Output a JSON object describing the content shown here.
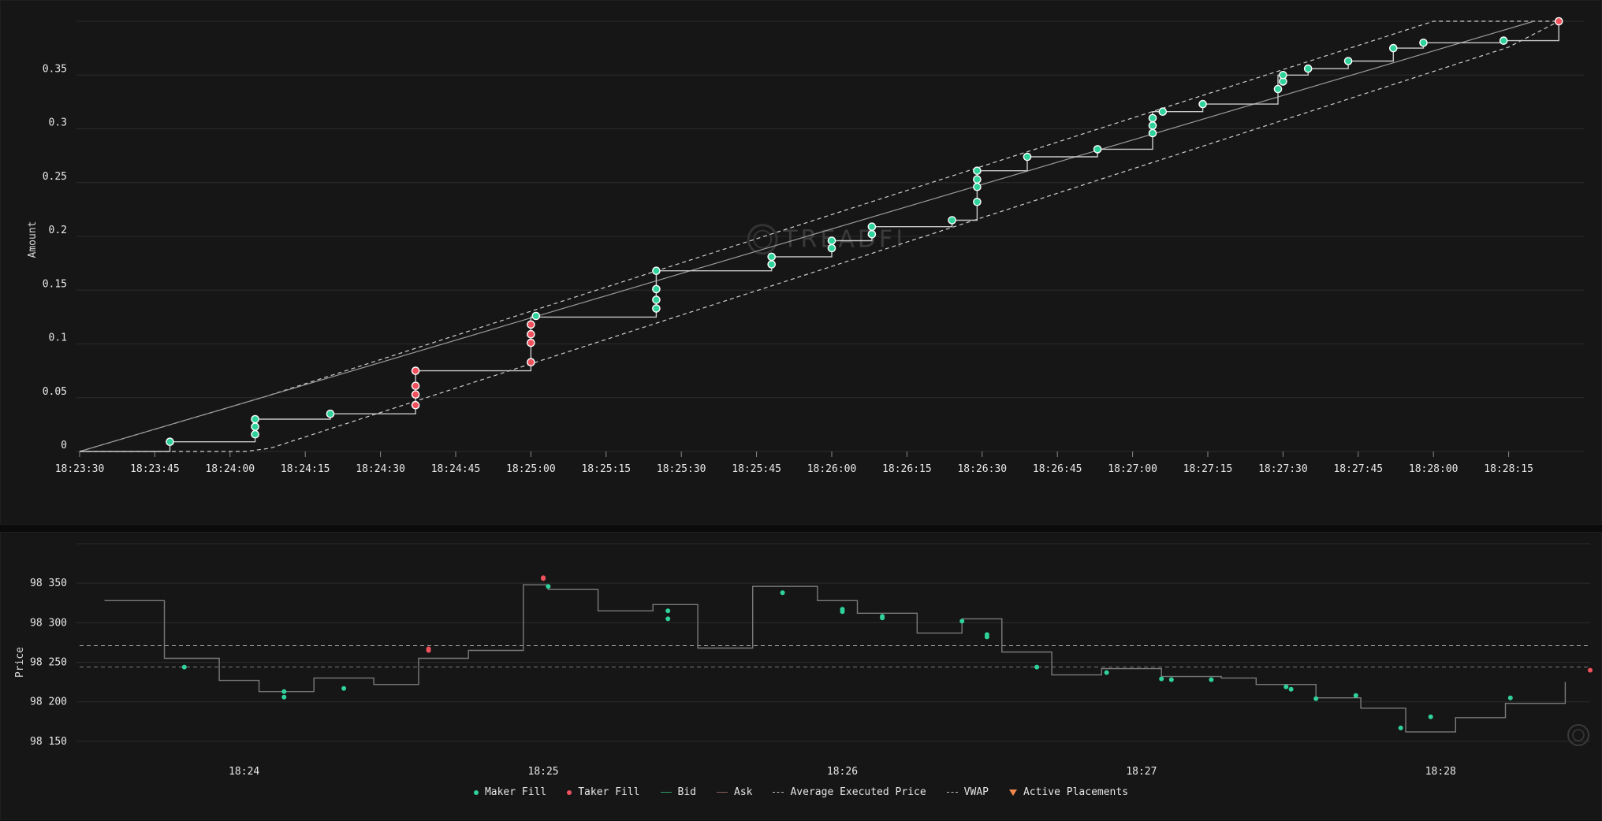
{
  "colors": {
    "maker": "#2fd39a",
    "taker": "#f0525d",
    "bid": "#2e9a6b",
    "ask": "#8a5a5a",
    "line": "#c9c9c9",
    "band": "#cfcfcf",
    "step": "#7a7a7a",
    "active": "#f0884d"
  },
  "watermark": "TREADFI",
  "chart_data": [
    {
      "type": "line",
      "ylabel": "Amount",
      "ylim": [
        0,
        0.4
      ],
      "xlim": [
        "18:23:30",
        "18:28:30"
      ],
      "yticks": [
        {
          "v": 0,
          "label": "0"
        },
        {
          "v": 0.05,
          "label": "0.05"
        },
        {
          "v": 0.1,
          "label": "0.1"
        },
        {
          "v": 0.15,
          "label": "0.15"
        },
        {
          "v": 0.2,
          "label": "0.2"
        },
        {
          "v": 0.25,
          "label": "0.25"
        },
        {
          "v": 0.3,
          "label": "0.3"
        },
        {
          "v": 0.35,
          "label": "0.35"
        }
      ],
      "xticks": [
        "18:23:30",
        "18:23:45",
        "18:24:00",
        "18:24:15",
        "18:24:30",
        "18:24:45",
        "18:25:00",
        "18:25:15",
        "18:25:30",
        "18:25:45",
        "18:26:00",
        "18:26:15",
        "18:26:30",
        "18:26:45",
        "18:27:00",
        "18:27:15",
        "18:27:30",
        "18:27:45",
        "18:28:00",
        "18:28:15"
      ],
      "target_line": [
        [
          "18:23:30",
          0
        ],
        [
          "18:28:20",
          0.4
        ]
      ],
      "upper_band": [
        [
          "18:23:30",
          0
        ],
        [
          "18:24:07",
          0.051
        ],
        [
          "18:28:00",
          0.4
        ],
        [
          "18:28:25",
          0.4
        ]
      ],
      "lower_band": [
        [
          "18:23:30",
          0
        ],
        [
          "18:24:03",
          0
        ],
        [
          "18:24:08",
          0.003
        ],
        [
          "18:28:15",
          0.376
        ],
        [
          "18:28:25",
          0.4
        ]
      ],
      "executed_steps": [
        [
          "18:23:30",
          0
        ],
        [
          "18:23:48",
          0
        ],
        [
          "18:23:48",
          0.009
        ],
        [
          "18:24:05",
          0.009
        ],
        [
          "18:24:05",
          0.03
        ],
        [
          "18:24:20",
          0.03
        ],
        [
          "18:24:20",
          0.035
        ],
        [
          "18:24:37",
          0.035
        ],
        [
          "18:24:37",
          0.075
        ],
        [
          "18:25:00",
          0.075
        ],
        [
          "18:25:00",
          0.125
        ],
        [
          "18:25:25",
          0.125
        ],
        [
          "18:25:25",
          0.168
        ],
        [
          "18:25:48",
          0.168
        ],
        [
          "18:25:48",
          0.181
        ],
        [
          "18:26:00",
          0.181
        ],
        [
          "18:26:00",
          0.196
        ],
        [
          "18:26:08",
          0.196
        ],
        [
          "18:26:08",
          0.209
        ],
        [
          "18:26:24",
          0.209
        ],
        [
          "18:26:24",
          0.215
        ],
        [
          "18:26:29",
          0.215
        ],
        [
          "18:26:29",
          0.261
        ],
        [
          "18:26:39",
          0.261
        ],
        [
          "18:26:39",
          0.274
        ],
        [
          "18:26:53",
          0.274
        ],
        [
          "18:26:53",
          0.281
        ],
        [
          "18:27:04",
          0.281
        ],
        [
          "18:27:04",
          0.316
        ],
        [
          "18:27:14",
          0.316
        ],
        [
          "18:27:14",
          0.323
        ],
        [
          "18:27:29",
          0.323
        ],
        [
          "18:27:29",
          0.35
        ],
        [
          "18:27:35",
          0.35
        ],
        [
          "18:27:35",
          0.356
        ],
        [
          "18:27:43",
          0.356
        ],
        [
          "18:27:43",
          0.363
        ],
        [
          "18:27:52",
          0.363
        ],
        [
          "18:27:52",
          0.375
        ],
        [
          "18:27:58",
          0.375
        ],
        [
          "18:27:58",
          0.38
        ],
        [
          "18:28:14",
          0.38
        ],
        [
          "18:28:14",
          0.382
        ],
        [
          "18:28:25",
          0.382
        ],
        [
          "18:28:25",
          0.4
        ]
      ],
      "maker_fills": [
        [
          "18:23:48",
          0.009
        ],
        [
          "18:24:05",
          0.016
        ],
        [
          "18:24:05",
          0.023
        ],
        [
          "18:24:05",
          0.03
        ],
        [
          "18:24:20",
          0.035
        ],
        [
          "18:25:01",
          0.126
        ],
        [
          "18:25:25",
          0.133
        ],
        [
          "18:25:25",
          0.141
        ],
        [
          "18:25:25",
          0.151
        ],
        [
          "18:25:25",
          0.168
        ],
        [
          "18:25:48",
          0.174
        ],
        [
          "18:25:48",
          0.181
        ],
        [
          "18:26:00",
          0.189
        ],
        [
          "18:26:00",
          0.196
        ],
        [
          "18:26:08",
          0.202
        ],
        [
          "18:26:08",
          0.209
        ],
        [
          "18:26:24",
          0.215
        ],
        [
          "18:26:29",
          0.232
        ],
        [
          "18:26:29",
          0.246
        ],
        [
          "18:26:29",
          0.253
        ],
        [
          "18:26:29",
          0.261
        ],
        [
          "18:26:39",
          0.274
        ],
        [
          "18:26:53",
          0.281
        ],
        [
          "18:27:04",
          0.296
        ],
        [
          "18:27:04",
          0.303
        ],
        [
          "18:27:04",
          0.31
        ],
        [
          "18:27:06",
          0.316
        ],
        [
          "18:27:14",
          0.323
        ],
        [
          "18:27:29",
          0.337
        ],
        [
          "18:27:30",
          0.344
        ],
        [
          "18:27:30",
          0.35
        ],
        [
          "18:27:35",
          0.356
        ],
        [
          "18:27:43",
          0.363
        ],
        [
          "18:27:52",
          0.375
        ],
        [
          "18:27:58",
          0.38
        ],
        [
          "18:28:14",
          0.382
        ]
      ],
      "taker_fills": [
        [
          "18:24:37",
          0.043
        ],
        [
          "18:24:37",
          0.053
        ],
        [
          "18:24:37",
          0.061
        ],
        [
          "18:24:37",
          0.075
        ],
        [
          "18:25:00",
          0.083
        ],
        [
          "18:25:00",
          0.101
        ],
        [
          "18:25:00",
          0.109
        ],
        [
          "18:25:00",
          0.118
        ],
        [
          "18:28:25",
          0.4
        ]
      ]
    },
    {
      "type": "line",
      "ylabel": "Price",
      "ylim": [
        98130,
        98400
      ],
      "xlim": [
        "18:23:27",
        "18:28:30"
      ],
      "yticks": [
        {
          "v": 98150,
          "label": "98 150"
        },
        {
          "v": 98200,
          "label": "98 200"
        },
        {
          "v": 98250,
          "label": "98 250"
        },
        {
          "v": 98300,
          "label": "98 300"
        },
        {
          "v": 98350,
          "label": "98 350"
        }
      ],
      "extra_gridlines": [
        98400
      ],
      "xticks": [
        "18:24",
        "18:25",
        "18:26",
        "18:27",
        "18:28"
      ],
      "average_executed_price": 98271,
      "vwap": 98244,
      "price_steps": [
        [
          "18:23:32",
          98328
        ],
        [
          "18:23:44",
          98328
        ],
        [
          "18:23:44",
          98255
        ],
        [
          "18:23:55",
          98255
        ],
        [
          "18:23:55",
          98227
        ],
        [
          "18:24:03",
          98227
        ],
        [
          "18:24:03",
          98213
        ],
        [
          "18:24:14",
          98213
        ],
        [
          "18:24:14",
          98230
        ],
        [
          "18:24:26",
          98230
        ],
        [
          "18:24:26",
          98222
        ],
        [
          "18:24:35",
          98222
        ],
        [
          "18:24:35",
          98255
        ],
        [
          "18:24:45",
          98255
        ],
        [
          "18:24:45",
          98265
        ],
        [
          "18:24:56",
          98265
        ],
        [
          "18:24:56",
          98348
        ],
        [
          "18:25:01",
          98348
        ],
        [
          "18:25:01",
          98342
        ],
        [
          "18:25:11",
          98342
        ],
        [
          "18:25:11",
          98315
        ],
        [
          "18:25:22",
          98315
        ],
        [
          "18:25:22",
          98323
        ],
        [
          "18:25:31",
          98323
        ],
        [
          "18:25:31",
          98268
        ],
        [
          "18:25:42",
          98268
        ],
        [
          "18:25:42",
          98346
        ],
        [
          "18:25:55",
          98346
        ],
        [
          "18:25:55",
          98328
        ],
        [
          "18:26:03",
          98328
        ],
        [
          "18:26:03",
          98312
        ],
        [
          "18:26:15",
          98312
        ],
        [
          "18:26:15",
          98287
        ],
        [
          "18:26:24",
          98287
        ],
        [
          "18:26:24",
          98305
        ],
        [
          "18:26:32",
          98305
        ],
        [
          "18:26:32",
          98263
        ],
        [
          "18:26:42",
          98263
        ],
        [
          "18:26:42",
          98234
        ],
        [
          "18:26:52",
          98234
        ],
        [
          "18:26:52",
          98242
        ],
        [
          "18:27:04",
          98242
        ],
        [
          "18:27:04",
          98232
        ],
        [
          "18:27:16",
          98232
        ],
        [
          "18:27:16",
          98230
        ],
        [
          "18:27:23",
          98230
        ],
        [
          "18:27:23",
          98222
        ],
        [
          "18:27:35",
          98222
        ],
        [
          "18:27:35",
          98205
        ],
        [
          "18:27:44",
          98205
        ],
        [
          "18:27:44",
          98192
        ],
        [
          "18:27:53",
          98192
        ],
        [
          "18:27:53",
          98162
        ],
        [
          "18:28:03",
          98162
        ],
        [
          "18:28:03",
          98180
        ],
        [
          "18:28:13",
          98180
        ],
        [
          "18:28:13",
          98198
        ],
        [
          "18:28:25",
          98198
        ],
        [
          "18:28:25",
          98225
        ]
      ],
      "maker_fills": [
        [
          "18:23:48",
          98244
        ],
        [
          "18:24:08",
          98213
        ],
        [
          "18:24:08",
          98206
        ],
        [
          "18:24:20",
          98217
        ],
        [
          "18:25:01",
          98346
        ],
        [
          "18:25:25",
          98315
        ],
        [
          "18:25:25",
          98305
        ],
        [
          "18:25:48",
          98338
        ],
        [
          "18:26:00",
          98317
        ],
        [
          "18:26:00",
          98314
        ],
        [
          "18:26:08",
          98308
        ],
        [
          "18:26:08",
          98306
        ],
        [
          "18:26:24",
          98302
        ],
        [
          "18:26:29",
          98285
        ],
        [
          "18:26:29",
          98282
        ],
        [
          "18:26:39",
          98244
        ],
        [
          "18:26:53",
          98237
        ],
        [
          "18:27:04",
          98229
        ],
        [
          "18:27:06",
          98228
        ],
        [
          "18:27:14",
          98228
        ],
        [
          "18:27:29",
          98219
        ],
        [
          "18:27:30",
          98216
        ],
        [
          "18:27:35",
          98204
        ],
        [
          "18:27:43",
          98208
        ],
        [
          "18:27:52",
          98167
        ],
        [
          "18:27:58",
          98181
        ],
        [
          "18:28:14",
          98205
        ]
      ],
      "taker_fills": [
        [
          "18:24:37",
          98265
        ],
        [
          "18:24:37",
          98267
        ],
        [
          "18:25:00",
          98356
        ],
        [
          "18:25:00",
          98357
        ],
        [
          "18:28:30",
          98240
        ]
      ]
    }
  ],
  "legend": [
    {
      "label": "Maker Fill",
      "kind": "dot",
      "color": "#2fd39a"
    },
    {
      "label": "Taker Fill",
      "kind": "dot",
      "color": "#f0525d"
    },
    {
      "label": "Bid",
      "kind": "line",
      "color": "#2e9a6b"
    },
    {
      "label": "Ask",
      "kind": "line",
      "color": "#8a5a5a"
    },
    {
      "label": "Average Executed Price",
      "kind": "dash",
      "color": "#bdbdbd"
    },
    {
      "label": "VWAP",
      "kind": "dash",
      "color": "#bdbdbd"
    },
    {
      "label": "Active Placements",
      "kind": "triangle",
      "color": "#f0884d"
    }
  ]
}
